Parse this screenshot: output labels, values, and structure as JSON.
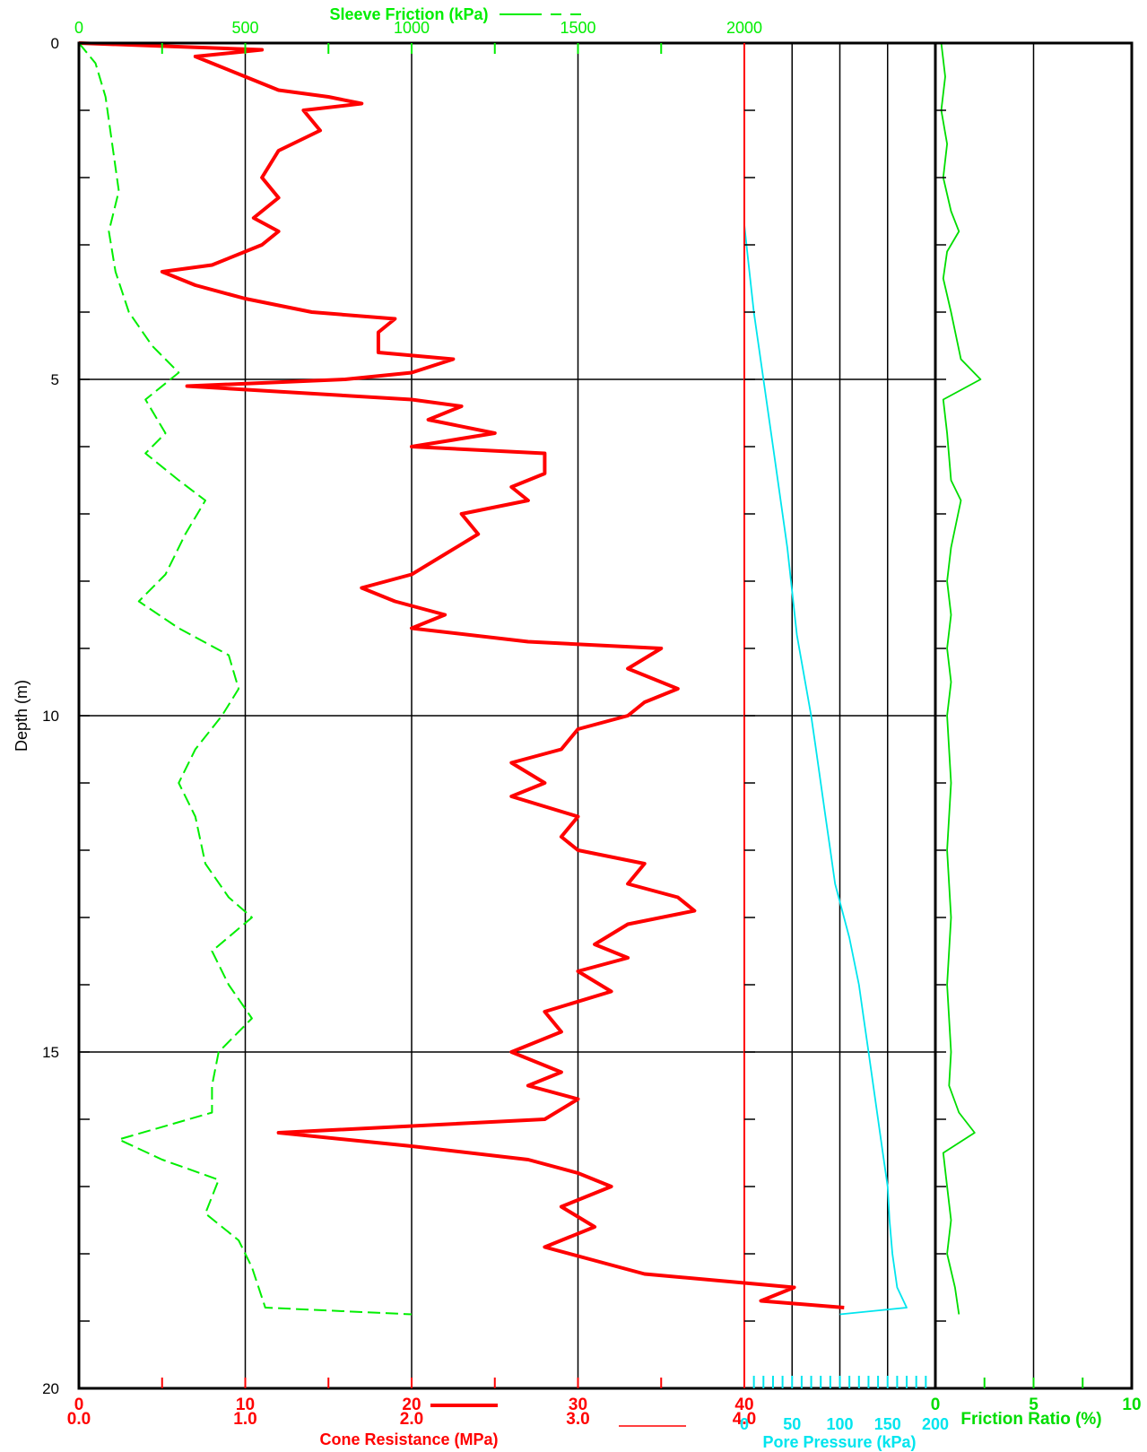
{
  "colors": {
    "cone": "#ff0000",
    "sleeve": "#00ee00",
    "pore": "#00e5ee",
    "friction": "#00dd00",
    "axis": "#000000"
  },
  "chart_data": {
    "type": "line",
    "y_axis": {
      "label": "Depth (m)",
      "range": [
        0,
        20
      ],
      "ticks": [
        "0",
        "5",
        "10",
        "15",
        "20"
      ],
      "inverted": true
    },
    "panels": [
      {
        "name": "cone-resistance-panel",
        "axes": [
          {
            "title": "Sleeve Friction (kPa)",
            "position": "top",
            "range": [
              0,
              2000
            ],
            "ticks": [
              "0",
              "500",
              "1000",
              "1500",
              "2000"
            ]
          },
          {
            "title": "Cone Resistance (MPa)",
            "position": "bottom",
            "range": [
              0,
              40
            ],
            "ticks": [
              "0",
              "10",
              "20",
              "30",
              "40"
            ],
            "ticks_secondary": [
              "0.0",
              "1.0",
              "2.0",
              "3.0",
              "4.0"
            ]
          }
        ],
        "series": [
          {
            "series_key": "cone",
            "style": "thick-solid",
            "unit": "MPa",
            "points": [
              [
                0,
                0
              ],
              [
                11,
                0.1
              ],
              [
                7,
                0.2
              ],
              [
                8,
                0.3
              ],
              [
                10,
                0.5
              ],
              [
                12,
                0.7
              ],
              [
                15,
                0.8
              ],
              [
                17,
                0.9
              ],
              [
                13.5,
                1.0
              ],
              [
                14.5,
                1.3
              ],
              [
                12,
                1.6
              ],
              [
                11,
                2.0
              ],
              [
                12,
                2.3
              ],
              [
                10.5,
                2.6
              ],
              [
                12,
                2.8
              ],
              [
                11,
                3.0
              ],
              [
                8,
                3.3
              ],
              [
                5,
                3.4
              ],
              [
                7,
                3.6
              ],
              [
                10,
                3.8
              ],
              [
                14,
                4.0
              ],
              [
                19,
                4.1
              ],
              [
                18,
                4.3
              ],
              [
                18,
                4.6
              ],
              [
                22.5,
                4.7
              ],
              [
                20,
                4.9
              ],
              [
                16,
                5.0
              ],
              [
                6.5,
                5.1
              ],
              [
                20,
                5.3
              ],
              [
                23,
                5.4
              ],
              [
                21,
                5.6
              ],
              [
                25,
                5.8
              ],
              [
                20,
                6.0
              ],
              [
                28,
                6.1
              ],
              [
                28,
                6.4
              ],
              [
                26,
                6.6
              ],
              [
                27,
                6.8
              ],
              [
                23,
                7.0
              ],
              [
                24,
                7.3
              ],
              [
                22,
                7.6
              ],
              [
                20,
                7.9
              ],
              [
                17,
                8.1
              ],
              [
                19,
                8.3
              ],
              [
                22,
                8.5
              ],
              [
                20,
                8.7
              ],
              [
                27,
                8.9
              ],
              [
                35,
                9.0
              ],
              [
                33,
                9.3
              ],
              [
                36,
                9.6
              ],
              [
                34,
                9.8
              ],
              [
                33,
                10.0
              ],
              [
                30,
                10.2
              ],
              [
                29,
                10.5
              ],
              [
                26,
                10.7
              ],
              [
                28,
                11.0
              ],
              [
                26,
                11.2
              ],
              [
                30,
                11.5
              ],
              [
                29,
                11.8
              ],
              [
                30,
                12.0
              ],
              [
                34,
                12.2
              ],
              [
                33,
                12.5
              ],
              [
                36,
                12.7
              ],
              [
                37,
                12.9
              ],
              [
                33,
                13.1
              ],
              [
                31,
                13.4
              ],
              [
                33,
                13.6
              ],
              [
                30,
                13.8
              ],
              [
                32,
                14.1
              ],
              [
                28,
                14.4
              ],
              [
                29,
                14.7
              ],
              [
                26,
                15.0
              ],
              [
                29,
                15.3
              ],
              [
                27,
                15.5
              ],
              [
                30,
                15.7
              ],
              [
                28,
                16.0
              ],
              [
                12,
                16.2
              ],
              [
                20,
                16.4
              ],
              [
                27,
                16.6
              ],
              [
                30,
                16.8
              ],
              [
                32,
                17.0
              ],
              [
                29,
                17.3
              ],
              [
                31,
                17.6
              ],
              [
                28,
                17.9
              ],
              [
                31,
                18.1
              ],
              [
                34,
                18.3
              ],
              [
                43,
                18.5
              ],
              [
                41,
                18.7
              ],
              [
                46,
                18.8
              ]
            ]
          },
          {
            "series_key": "sleeve",
            "style": "dashed",
            "unit": "kPa",
            "points": [
              [
                0,
                0
              ],
              [
                50,
                0.3
              ],
              [
                80,
                0.8
              ],
              [
                100,
                1.5
              ],
              [
                120,
                2.2
              ],
              [
                90,
                2.8
              ],
              [
                110,
                3.4
              ],
              [
                150,
                4.0
              ],
              [
                220,
                4.5
              ],
              [
                300,
                4.9
              ],
              [
                200,
                5.3
              ],
              [
                260,
                5.8
              ],
              [
                200,
                6.1
              ],
              [
                300,
                6.5
              ],
              [
                380,
                6.8
              ],
              [
                320,
                7.3
              ],
              [
                260,
                7.9
              ],
              [
                180,
                8.3
              ],
              [
                300,
                8.7
              ],
              [
                450,
                9.1
              ],
              [
                480,
                9.6
              ],
              [
                430,
                10.0
              ],
              [
                350,
                10.5
              ],
              [
                300,
                11.0
              ],
              [
                350,
                11.5
              ],
              [
                380,
                12.2
              ],
              [
                450,
                12.7
              ],
              [
                520,
                13.0
              ],
              [
                400,
                13.5
              ],
              [
                450,
                14.0
              ],
              [
                520,
                14.5
              ],
              [
                420,
                15.0
              ],
              [
                400,
                15.5
              ],
              [
                400,
                15.9
              ],
              [
                120,
                16.3
              ],
              [
                250,
                16.6
              ],
              [
                420,
                16.9
              ],
              [
                380,
                17.4
              ],
              [
                480,
                17.8
              ],
              [
                520,
                18.2
              ],
              [
                560,
                18.8
              ],
              [
                1000,
                18.9
              ]
            ]
          }
        ]
      },
      {
        "name": "pore-pressure-panel",
        "axes": [
          {
            "title": "Pore Pressure (kPa)",
            "position": "bottom",
            "range": [
              0,
              200
            ],
            "ticks": [
              "0",
              "50",
              "100",
              "150",
              "200"
            ]
          }
        ],
        "series": [
          {
            "series_key": "pore",
            "style": "thin-solid",
            "unit": "kPa",
            "points": [
              [
                0,
                2.7
              ],
              [
                3,
                3.1
              ],
              [
                10,
                4.0
              ],
              [
                20,
                5.0
              ],
              [
                30,
                6.0
              ],
              [
                45,
                7.5
              ],
              [
                55,
                8.8
              ],
              [
                65,
                9.6
              ],
              [
                70,
                10.0
              ],
              [
                75,
                10.5
              ],
              [
                80,
                11.0
              ],
              [
                85,
                11.5
              ],
              [
                90,
                12.0
              ],
              [
                95,
                12.5
              ],
              [
                110,
                13.3
              ],
              [
                120,
                14.0
              ],
              [
                125,
                14.5
              ],
              [
                130,
                15.0
              ],
              [
                135,
                15.5
              ],
              [
                140,
                16.0
              ],
              [
                145,
                16.5
              ],
              [
                150,
                17.0
              ],
              [
                152,
                17.5
              ],
              [
                155,
                18.0
              ],
              [
                160,
                18.5
              ],
              [
                170,
                18.8
              ],
              [
                100,
                18.9
              ]
            ]
          }
        ]
      },
      {
        "name": "friction-ratio-panel",
        "axes": [
          {
            "title": "Friction Ratio (%)",
            "position": "bottom",
            "range": [
              0,
              10
            ],
            "ticks": [
              "0",
              "5",
              "10"
            ]
          }
        ],
        "series": [
          {
            "series_key": "friction",
            "style": "thin-solid",
            "unit": "%",
            "points": [
              [
                0.3,
                0
              ],
              [
                0.5,
                0.5
              ],
              [
                0.3,
                1.0
              ],
              [
                0.6,
                1.5
              ],
              [
                0.4,
                2.0
              ],
              [
                0.8,
                2.5
              ],
              [
                1.2,
                2.8
              ],
              [
                0.6,
                3.1
              ],
              [
                0.4,
                3.5
              ],
              [
                0.8,
                4.0
              ],
              [
                1.3,
                4.7
              ],
              [
                2.3,
                5.0
              ],
              [
                0.4,
                5.3
              ],
              [
                0.6,
                5.8
              ],
              [
                0.8,
                6.5
              ],
              [
                1.3,
                6.8
              ],
              [
                0.8,
                7.5
              ],
              [
                0.6,
                8.0
              ],
              [
                0.8,
                8.5
              ],
              [
                0.6,
                9.0
              ],
              [
                0.8,
                9.5
              ],
              [
                0.6,
                10.0
              ],
              [
                0.8,
                11.0
              ],
              [
                0.6,
                12.0
              ],
              [
                0.8,
                13.0
              ],
              [
                0.6,
                14.0
              ],
              [
                0.8,
                15.0
              ],
              [
                0.7,
                15.5
              ],
              [
                1.2,
                15.9
              ],
              [
                2.0,
                16.2
              ],
              [
                0.4,
                16.5
              ],
              [
                0.6,
                17.0
              ],
              [
                0.8,
                17.5
              ],
              [
                0.6,
                18.0
              ],
              [
                1.0,
                18.5
              ],
              [
                1.2,
                18.9
              ]
            ]
          }
        ]
      }
    ],
    "legend": {
      "position": "top and bottom beside axis titles",
      "entries": [
        "Sleeve Friction (kPa)",
        "Cone Resistance (MPa)"
      ]
    },
    "grid": true
  }
}
